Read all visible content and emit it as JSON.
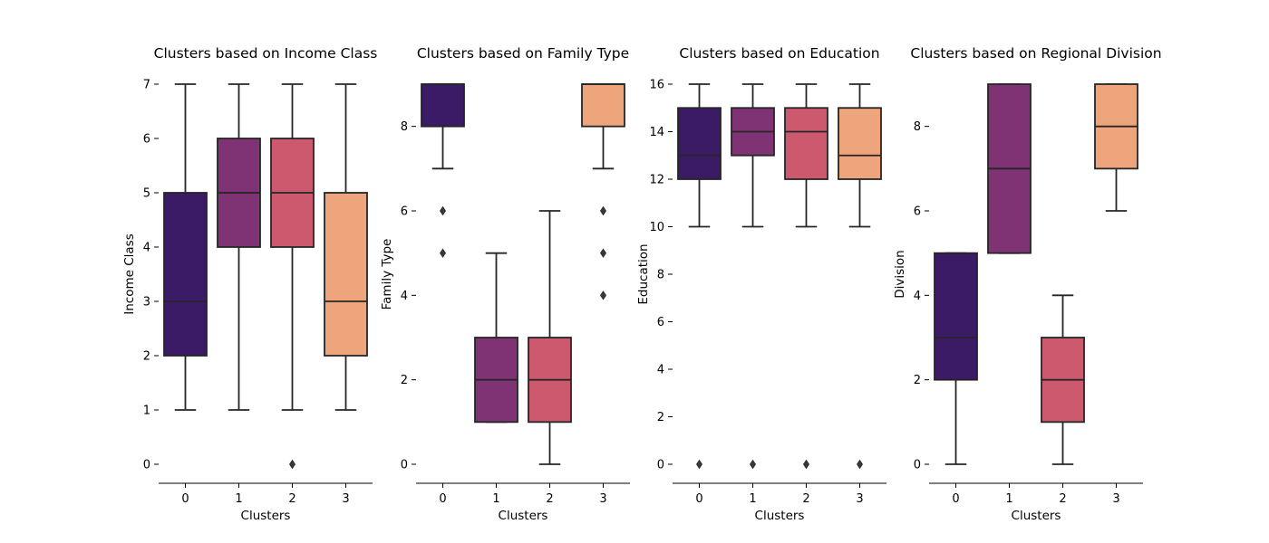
{
  "palette": [
    "#3b1a66",
    "#7f3375",
    "#cd596e",
    "#eea57c"
  ],
  "chart_data": [
    {
      "type": "box",
      "title": "Clusters based on Income Class",
      "xlabel": "Clusters",
      "ylabel": "Income Class",
      "categories": [
        "0",
        "1",
        "2",
        "3"
      ],
      "yticks": [
        "0",
        "1",
        "2",
        "3",
        "4",
        "5",
        "6",
        "7"
      ],
      "yticks_values": [
        0,
        1,
        2,
        3,
        4,
        5,
        6,
        7
      ],
      "ylim": [
        -0.35,
        7
      ],
      "boxes": [
        {
          "q1": 2,
          "median": 3,
          "q3": 5,
          "whisker_low": 1,
          "whisker_high": 7,
          "outliers": []
        },
        {
          "q1": 4,
          "median": 5,
          "q3": 6,
          "whisker_low": 1,
          "whisker_high": 7,
          "outliers": []
        },
        {
          "q1": 4,
          "median": 5,
          "q3": 6,
          "whisker_low": 1,
          "whisker_high": 7,
          "outliers": [
            0
          ]
        },
        {
          "q1": 2,
          "median": 3,
          "q3": 5,
          "whisker_low": 1,
          "whisker_high": 7,
          "outliers": []
        }
      ]
    },
    {
      "type": "box",
      "title": "Clusters based on Family Type",
      "xlabel": "Clusters",
      "ylabel": "Family Type",
      "categories": [
        "0",
        "1",
        "2",
        "3"
      ],
      "yticks": [
        "0",
        "2",
        "4",
        "6",
        "8"
      ],
      "yticks_values": [
        0,
        2,
        4,
        6,
        8
      ],
      "ylim": [
        -0.45,
        9
      ],
      "boxes": [
        {
          "q1": 8,
          "median": 9,
          "q3": 9,
          "whisker_low": 7,
          "whisker_high": 9,
          "outliers": [
            6,
            5
          ]
        },
        {
          "q1": 1,
          "median": 2,
          "q3": 3,
          "whisker_low": 1,
          "whisker_high": 5,
          "outliers": []
        },
        {
          "q1": 1,
          "median": 2,
          "q3": 3,
          "whisker_low": 0,
          "whisker_high": 6,
          "outliers": []
        },
        {
          "q1": 8,
          "median": 9,
          "q3": 9,
          "whisker_low": 7,
          "whisker_high": 9,
          "outliers": [
            6,
            5,
            4
          ]
        }
      ]
    },
    {
      "type": "box",
      "title": "Clusters based on Education",
      "xlabel": "Clusters",
      "ylabel": "Education",
      "categories": [
        "0",
        "1",
        "2",
        "3"
      ],
      "yticks": [
        "0",
        "2",
        "4",
        "6",
        "8",
        "10",
        "12",
        "14",
        "16"
      ],
      "yticks_values": [
        0,
        2,
        4,
        6,
        8,
        10,
        12,
        14,
        16
      ],
      "ylim": [
        -0.8,
        16
      ],
      "boxes": [
        {
          "q1": 12,
          "median": 13,
          "q3": 15,
          "whisker_low": 10,
          "whisker_high": 16,
          "outliers": [
            0
          ]
        },
        {
          "q1": 13,
          "median": 14,
          "q3": 15,
          "whisker_low": 10,
          "whisker_high": 16,
          "outliers": [
            0
          ]
        },
        {
          "q1": 12,
          "median": 14,
          "q3": 15,
          "whisker_low": 10,
          "whisker_high": 16,
          "outliers": [
            0
          ]
        },
        {
          "q1": 12,
          "median": 13,
          "q3": 15,
          "whisker_low": 10,
          "whisker_high": 16,
          "outliers": [
            0
          ]
        }
      ]
    },
    {
      "type": "box",
      "title": "Clusters based on Regional Division",
      "xlabel": "Clusters",
      "ylabel": "Division",
      "categories": [
        "0",
        "1",
        "2",
        "3"
      ],
      "yticks": [
        "0",
        "2",
        "4",
        "6",
        "8"
      ],
      "yticks_values": [
        0,
        2,
        4,
        6,
        8
      ],
      "ylim": [
        -0.45,
        9
      ],
      "boxes": [
        {
          "q1": 2,
          "median": 3,
          "q3": 5,
          "whisker_low": 0,
          "whisker_high": 5,
          "outliers": []
        },
        {
          "q1": 5,
          "median": 7,
          "q3": 9,
          "whisker_low": 5,
          "whisker_high": 9,
          "outliers": []
        },
        {
          "q1": 1,
          "median": 2,
          "q3": 3,
          "whisker_low": 0,
          "whisker_high": 4,
          "outliers": []
        },
        {
          "q1": 7,
          "median": 8,
          "q3": 9,
          "whisker_low": 6,
          "whisker_high": 9,
          "outliers": []
        }
      ]
    }
  ]
}
